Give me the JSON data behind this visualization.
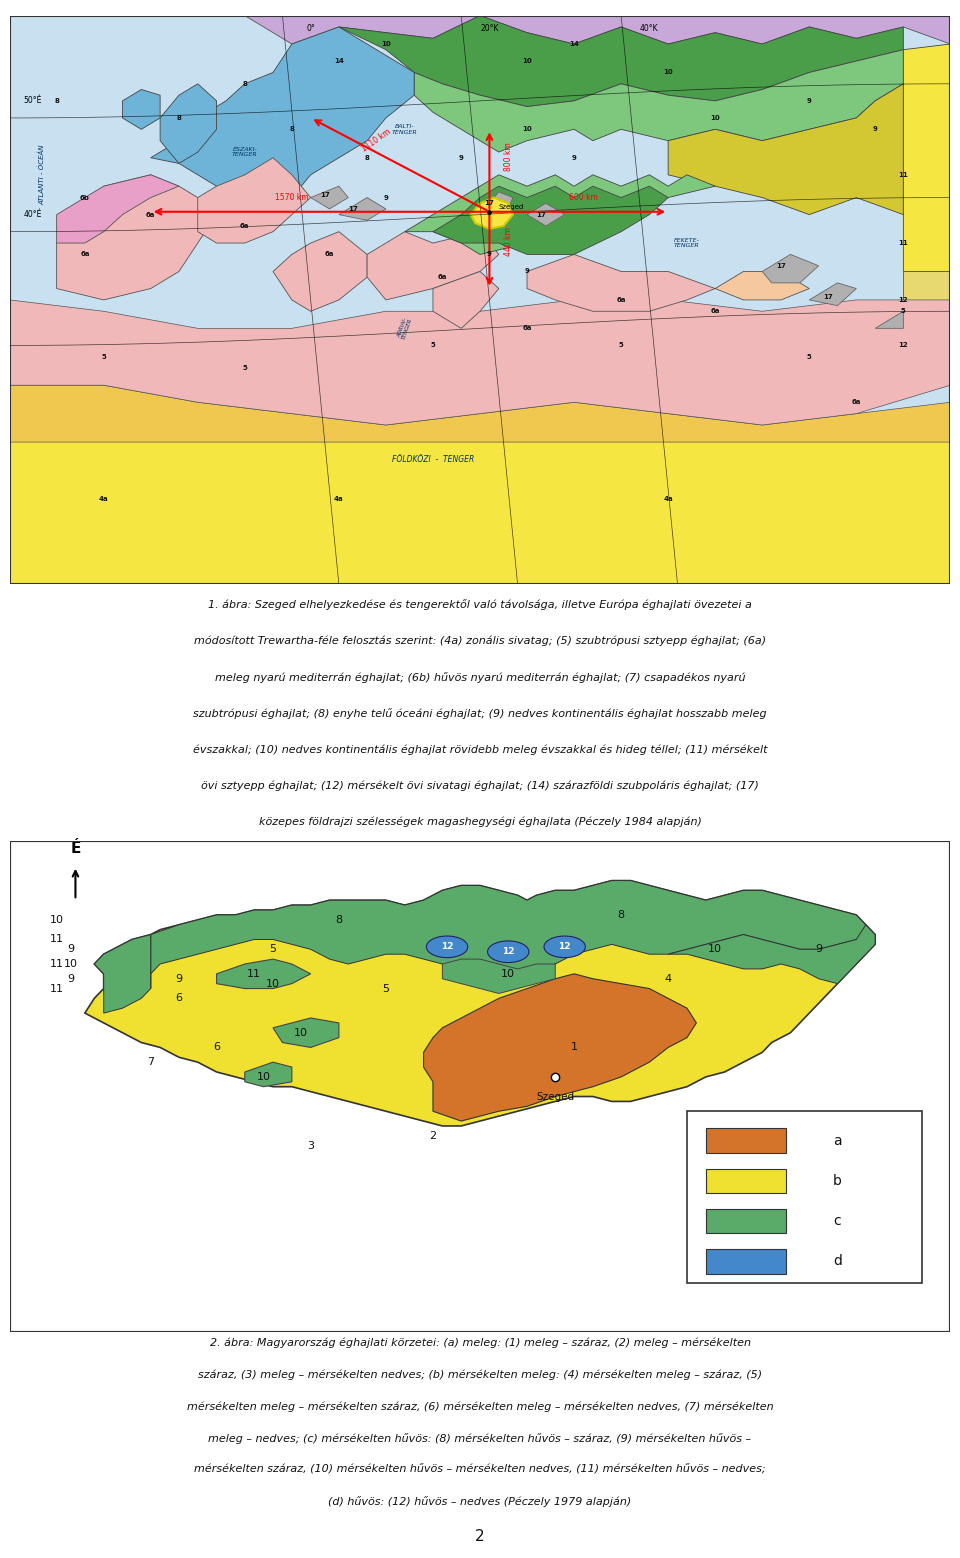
{
  "figure_width": 9.6,
  "figure_height": 15.58,
  "bg_color": "#ffffff",
  "map1_caption": [
    "1. ábra: Szeged elhelyezkedése és tengerektől való távolsága, illetve Európa éghajlati övezetei a",
    "módosított Trewartha-féle felosztás szerint: (4a) zonális sivatag; (5) szubtrópusi sztyepp éghajlat; (6a)",
    "meleg nyarú mediterrán éghajlat; (6b) hűvös nyarú mediterrán éghajlat; (7) csapadékos nyarú",
    "szubtrópusi éghajlat; (8) enyhe telű óceáni éghajlat; (9) nedves kontinentális éghajlat hosszabb meleg",
    "évszakkal; (10) nedves kontinentális éghajlat rövidebb meleg évszakkal és hideg téllel; (11) mérsékelt",
    "övi sztyepp éghajlat; (12) mérsékelt övi sivatagi éghajlat; (14) szárazföldi szubpoláris éghajlat; (17)",
    "közepes földrajzi szélességek magashegységi éghajlata (Péczely 1984 alapján)"
  ],
  "map2_caption": [
    "2. ábra: Magyarország éghajlati körzetei: (a) meleg: (1) meleg – száraz, (2) meleg – mérsékelten",
    "száraz, (3) meleg – mérsékelten nedves; (b) mérsékelten meleg: (4) mérsékelten meleg – száraz, (5)",
    "mérsékelten meleg – mérsékelten száraz, (6) mérsékelten meleg – mérsékelten nedves, (7) mérsékelten",
    "meleg – nedves; (c) mérsékelten hűvös: (8) mérsékelten hűvös – száraz, (9) mérsékelten hűvös –",
    "mérsékelten száraz, (10) mérsékelten hűvös – mérsékelten nedves, (11) mérsékelten hűvös – nedves;",
    "(d) hűvös: (12) hűvös – nedves (Péczely 1979 alapján)"
  ],
  "page_number": "2",
  "colors": {
    "ocean": "#c8e0f0",
    "blue_8": "#6eb4d8",
    "green_9": "#7dc87d",
    "green_dark_9": "#4a9e4a",
    "yellow_10": "#d4c832",
    "yellow_11": "#d4c832",
    "pink_6a": "#f0b8b8",
    "pink_6b": "#e8a0c8",
    "pink_5": "#f5d080",
    "yellow_4a": "#f5e642",
    "gray_17": "#b0b0b0",
    "green_14": "#a0c870",
    "purple_14": "#c8a8d8",
    "hungary_orange": "#d4742a",
    "hungary_yellow": "#f0e030",
    "hungary_green": "#5aaa6a",
    "hungary_blue": "#4488cc",
    "legend_orange": "#d4742a",
    "legend_yellow": "#f0e030",
    "legend_green": "#5aaa6a",
    "legend_blue": "#4488cc"
  }
}
